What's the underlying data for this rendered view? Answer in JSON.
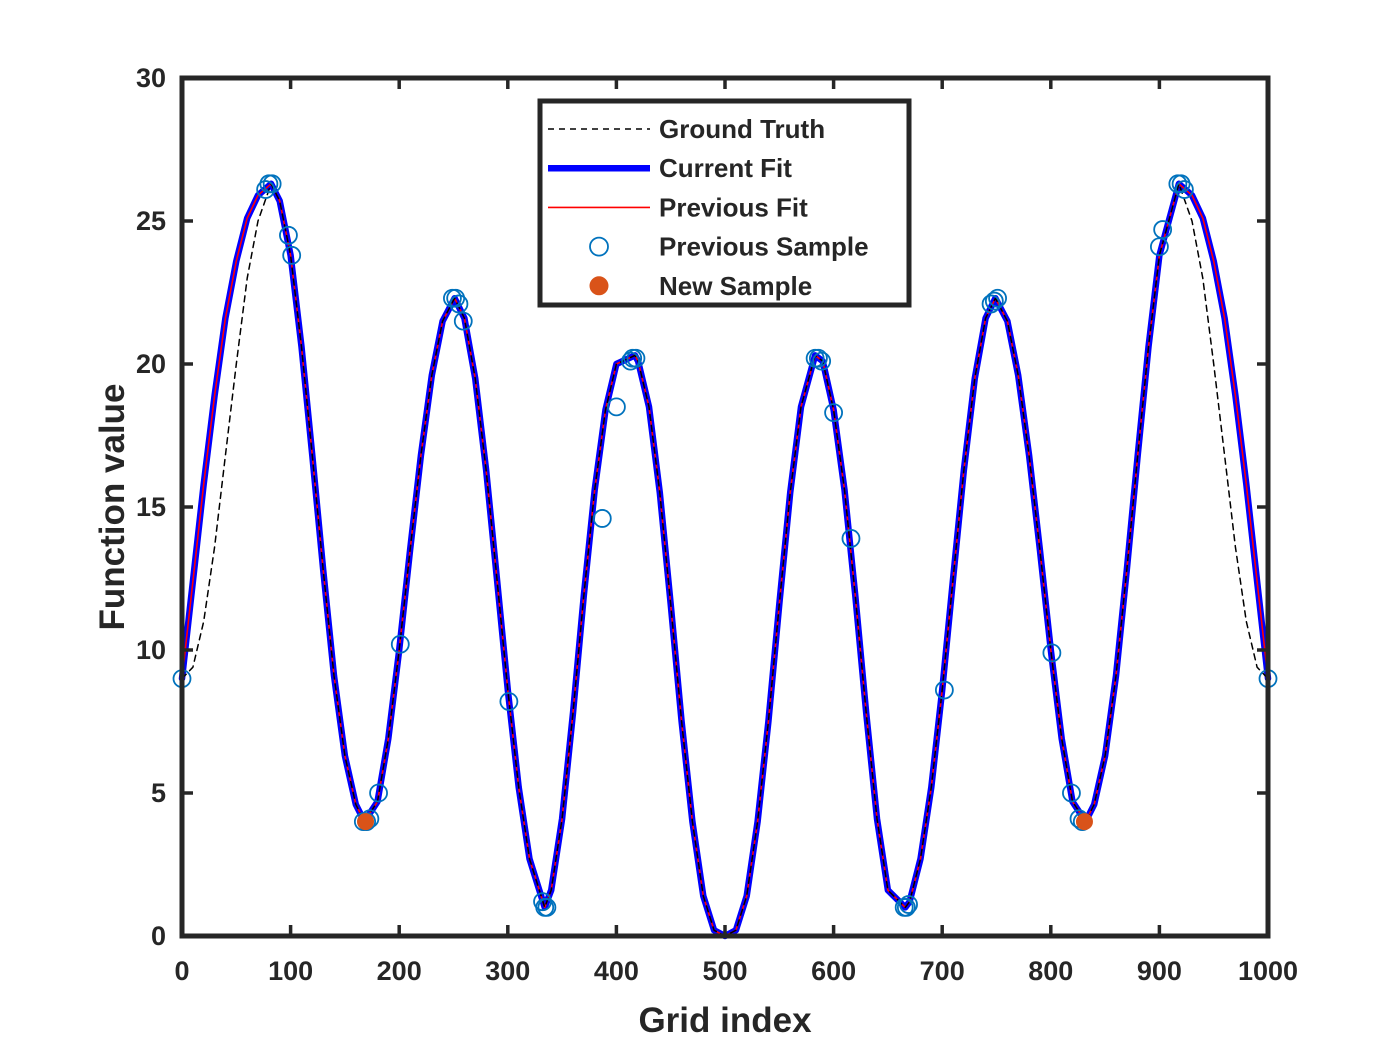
{
  "chart_data": {
    "type": "line",
    "xlabel": "Grid index",
    "ylabel": "Function value",
    "xlim": [
      0,
      1000
    ],
    "ylim": [
      0,
      30
    ],
    "xticks": [
      0,
      100,
      200,
      300,
      400,
      500,
      600,
      700,
      800,
      900,
      1000
    ],
    "yticks": [
      0,
      5,
      10,
      15,
      20,
      25,
      30
    ],
    "grid": false,
    "legend_position": "top-center",
    "colors": {
      "ground_truth": "#000000",
      "current_fit": "#0000ff",
      "previous_fit": "#ff0000",
      "previous_sample": "#0072bd",
      "new_sample": "#d95319",
      "axis": "#262626"
    },
    "series": [
      {
        "name": "Ground Truth",
        "kind": "line",
        "style": "dashed",
        "x": [
          0,
          10,
          20,
          30,
          40,
          50,
          60,
          70,
          82,
          90,
          100,
          110,
          120,
          130,
          140,
          150,
          160,
          168,
          180,
          190,
          200,
          210,
          220,
          230,
          240,
          251,
          260,
          270,
          280,
          290,
          300,
          310,
          320,
          334,
          340,
          350,
          360,
          370,
          380,
          390,
          400,
          417,
          420,
          430,
          440,
          450,
          460,
          470,
          480,
          490,
          500,
          510,
          520,
          530,
          540,
          550,
          560,
          570,
          583,
          590,
          600,
          610,
          620,
          630,
          640,
          650,
          666,
          670,
          680,
          690,
          700,
          710,
          720,
          730,
          740,
          749,
          760,
          770,
          780,
          790,
          800,
          810,
          820,
          832,
          840,
          850,
          860,
          870,
          880,
          890,
          900,
          918,
          930,
          940,
          950,
          960,
          970,
          980,
          990,
          1000
        ],
        "y": [
          9.0,
          9.4,
          11.0,
          13.6,
          16.8,
          20.0,
          23.0,
          25.0,
          26.3,
          25.7,
          23.8,
          20.6,
          16.8,
          12.8,
          9.1,
          6.3,
          4.6,
          4.0,
          4.7,
          6.9,
          10.0,
          13.5,
          16.8,
          19.6,
          21.5,
          22.3,
          21.6,
          19.5,
          16.3,
          12.5,
          8.6,
          5.2,
          2.7,
          1.0,
          1.6,
          4.1,
          7.8,
          11.9,
          15.6,
          18.4,
          20.0,
          20.3,
          20.1,
          18.5,
          15.5,
          11.6,
          7.5,
          4.0,
          1.4,
          0.2,
          0.0,
          0.2,
          1.4,
          4.0,
          7.5,
          11.6,
          15.5,
          18.5,
          20.3,
          20.1,
          18.4,
          15.6,
          11.9,
          7.8,
          4.1,
          1.6,
          1.0,
          1.2,
          2.7,
          5.2,
          8.6,
          12.5,
          16.3,
          19.5,
          21.6,
          22.3,
          21.5,
          19.6,
          16.8,
          13.5,
          10.0,
          6.9,
          4.7,
          4.0,
          4.6,
          6.3,
          9.1,
          12.8,
          16.8,
          20.6,
          23.8,
          26.3,
          25.0,
          23.0,
          20.0,
          16.8,
          13.6,
          11.0,
          9.4,
          9.0
        ]
      },
      {
        "name": "Current Fit",
        "kind": "line",
        "style": "solid-thick",
        "x": [
          0,
          10,
          20,
          30,
          40,
          50,
          60,
          70,
          82,
          90,
          100,
          110,
          120,
          130,
          140,
          150,
          160,
          168,
          180,
          190,
          200,
          210,
          220,
          230,
          240,
          251,
          260,
          270,
          280,
          290,
          300,
          310,
          320,
          334,
          340,
          350,
          360,
          370,
          380,
          390,
          400,
          417,
          420,
          430,
          440,
          450,
          460,
          470,
          480,
          490,
          500,
          510,
          520,
          530,
          540,
          550,
          560,
          570,
          583,
          590,
          600,
          610,
          620,
          630,
          640,
          650,
          666,
          670,
          680,
          690,
          700,
          710,
          720,
          730,
          740,
          749,
          760,
          770,
          780,
          790,
          800,
          810,
          820,
          832,
          840,
          850,
          860,
          870,
          880,
          890,
          900,
          918,
          930,
          940,
          950,
          960,
          970,
          980,
          990,
          1000
        ],
        "y": [
          9.0,
          12.4,
          15.8,
          18.9,
          21.6,
          23.6,
          25.1,
          25.9,
          26.3,
          25.7,
          23.8,
          20.6,
          16.8,
          12.8,
          9.1,
          6.3,
          4.6,
          4.0,
          4.7,
          6.9,
          10.0,
          13.5,
          16.8,
          19.6,
          21.5,
          22.3,
          21.6,
          19.5,
          16.3,
          12.5,
          8.6,
          5.2,
          2.7,
          1.0,
          1.6,
          4.1,
          7.8,
          11.9,
          15.6,
          18.4,
          20.0,
          20.3,
          20.1,
          18.5,
          15.5,
          11.6,
          7.5,
          4.0,
          1.4,
          0.2,
          0.0,
          0.2,
          1.4,
          4.0,
          7.5,
          11.6,
          15.5,
          18.5,
          20.3,
          20.1,
          18.4,
          15.6,
          11.9,
          7.8,
          4.1,
          1.6,
          1.0,
          1.2,
          2.7,
          5.2,
          8.6,
          12.5,
          16.3,
          19.5,
          21.6,
          22.3,
          21.5,
          19.6,
          16.8,
          13.5,
          10.0,
          6.9,
          4.7,
          4.0,
          4.6,
          6.3,
          9.1,
          12.8,
          16.8,
          20.6,
          23.8,
          26.3,
          25.9,
          25.1,
          23.6,
          21.6,
          18.9,
          15.8,
          12.4,
          9.0
        ]
      },
      {
        "name": "Previous Fit",
        "kind": "line",
        "style": "solid-thin",
        "x": [
          0,
          10,
          20,
          30,
          40,
          50,
          60,
          70,
          82,
          90,
          100,
          110,
          120,
          130,
          140,
          150,
          160,
          168,
          180,
          190,
          200,
          210,
          220,
          230,
          240,
          251,
          260,
          270,
          280,
          290,
          300,
          310,
          320,
          334,
          340,
          350,
          360,
          370,
          380,
          390,
          400,
          417,
          420,
          430,
          440,
          450,
          460,
          470,
          480,
          490,
          500,
          510,
          520,
          530,
          540,
          550,
          560,
          570,
          583,
          590,
          600,
          610,
          620,
          630,
          640,
          650,
          666,
          670,
          680,
          690,
          700,
          710,
          720,
          730,
          740,
          749,
          760,
          770,
          780,
          790,
          800,
          810,
          820,
          832,
          840,
          850,
          860,
          870,
          880,
          890,
          900,
          918,
          930,
          940,
          950,
          960,
          970,
          980,
          990,
          1000
        ],
        "y": [
          9.0,
          12.4,
          15.8,
          18.9,
          21.6,
          23.6,
          25.1,
          25.9,
          26.3,
          25.7,
          23.8,
          20.6,
          16.8,
          12.8,
          9.1,
          6.3,
          4.6,
          4.0,
          4.7,
          6.9,
          10.0,
          13.5,
          16.8,
          19.6,
          21.5,
          22.3,
          21.6,
          19.5,
          16.3,
          12.5,
          8.6,
          5.2,
          2.7,
          1.0,
          1.6,
          4.1,
          7.8,
          11.9,
          15.6,
          18.4,
          20.0,
          20.3,
          20.1,
          18.5,
          15.5,
          11.6,
          7.5,
          4.0,
          1.4,
          0.2,
          0.0,
          0.2,
          1.4,
          4.0,
          7.5,
          11.6,
          15.5,
          18.5,
          20.3,
          20.1,
          18.4,
          15.6,
          11.9,
          7.8,
          4.1,
          1.6,
          1.0,
          1.2,
          2.7,
          5.2,
          8.6,
          12.5,
          16.3,
          19.5,
          21.6,
          22.3,
          21.5,
          19.6,
          16.8,
          13.5,
          10.0,
          6.9,
          4.7,
          4.0,
          4.6,
          6.3,
          9.1,
          12.8,
          16.8,
          20.6,
          23.8,
          26.3,
          25.9,
          25.1,
          23.6,
          21.6,
          18.9,
          15.8,
          12.4,
          9.0
        ]
      },
      {
        "name": "Previous Sample",
        "kind": "scatter",
        "marker": "open-circle",
        "x": [
          0,
          77,
          80,
          83,
          98,
          101,
          167,
          170,
          173,
          181,
          201,
          249,
          252,
          255,
          259,
          301,
          332,
          334,
          336,
          387,
          400,
          413,
          415,
          418,
          583,
          586,
          589,
          600,
          616,
          665,
          667,
          669,
          702,
          745,
          748,
          751,
          801,
          819,
          826,
          829,
          900,
          903,
          917,
          920,
          923,
          1000
        ],
        "y": [
          9.0,
          26.1,
          26.3,
          26.3,
          24.5,
          23.8,
          4.0,
          4.0,
          4.1,
          5.0,
          10.2,
          22.3,
          22.3,
          22.1,
          21.5,
          8.2,
          1.2,
          1.0,
          1.0,
          14.6,
          18.5,
          20.1,
          20.2,
          20.2,
          20.2,
          20.2,
          20.1,
          18.3,
          13.9,
          1.0,
          1.0,
          1.1,
          8.6,
          22.1,
          22.2,
          22.3,
          9.9,
          5.0,
          4.1,
          4.0,
          24.1,
          24.7,
          26.3,
          26.3,
          26.1,
          9.0
        ]
      },
      {
        "name": "New Sample",
        "kind": "scatter",
        "marker": "filled-circle",
        "x": [
          169,
          831
        ],
        "y": [
          4.0,
          4.0
        ]
      }
    ]
  }
}
